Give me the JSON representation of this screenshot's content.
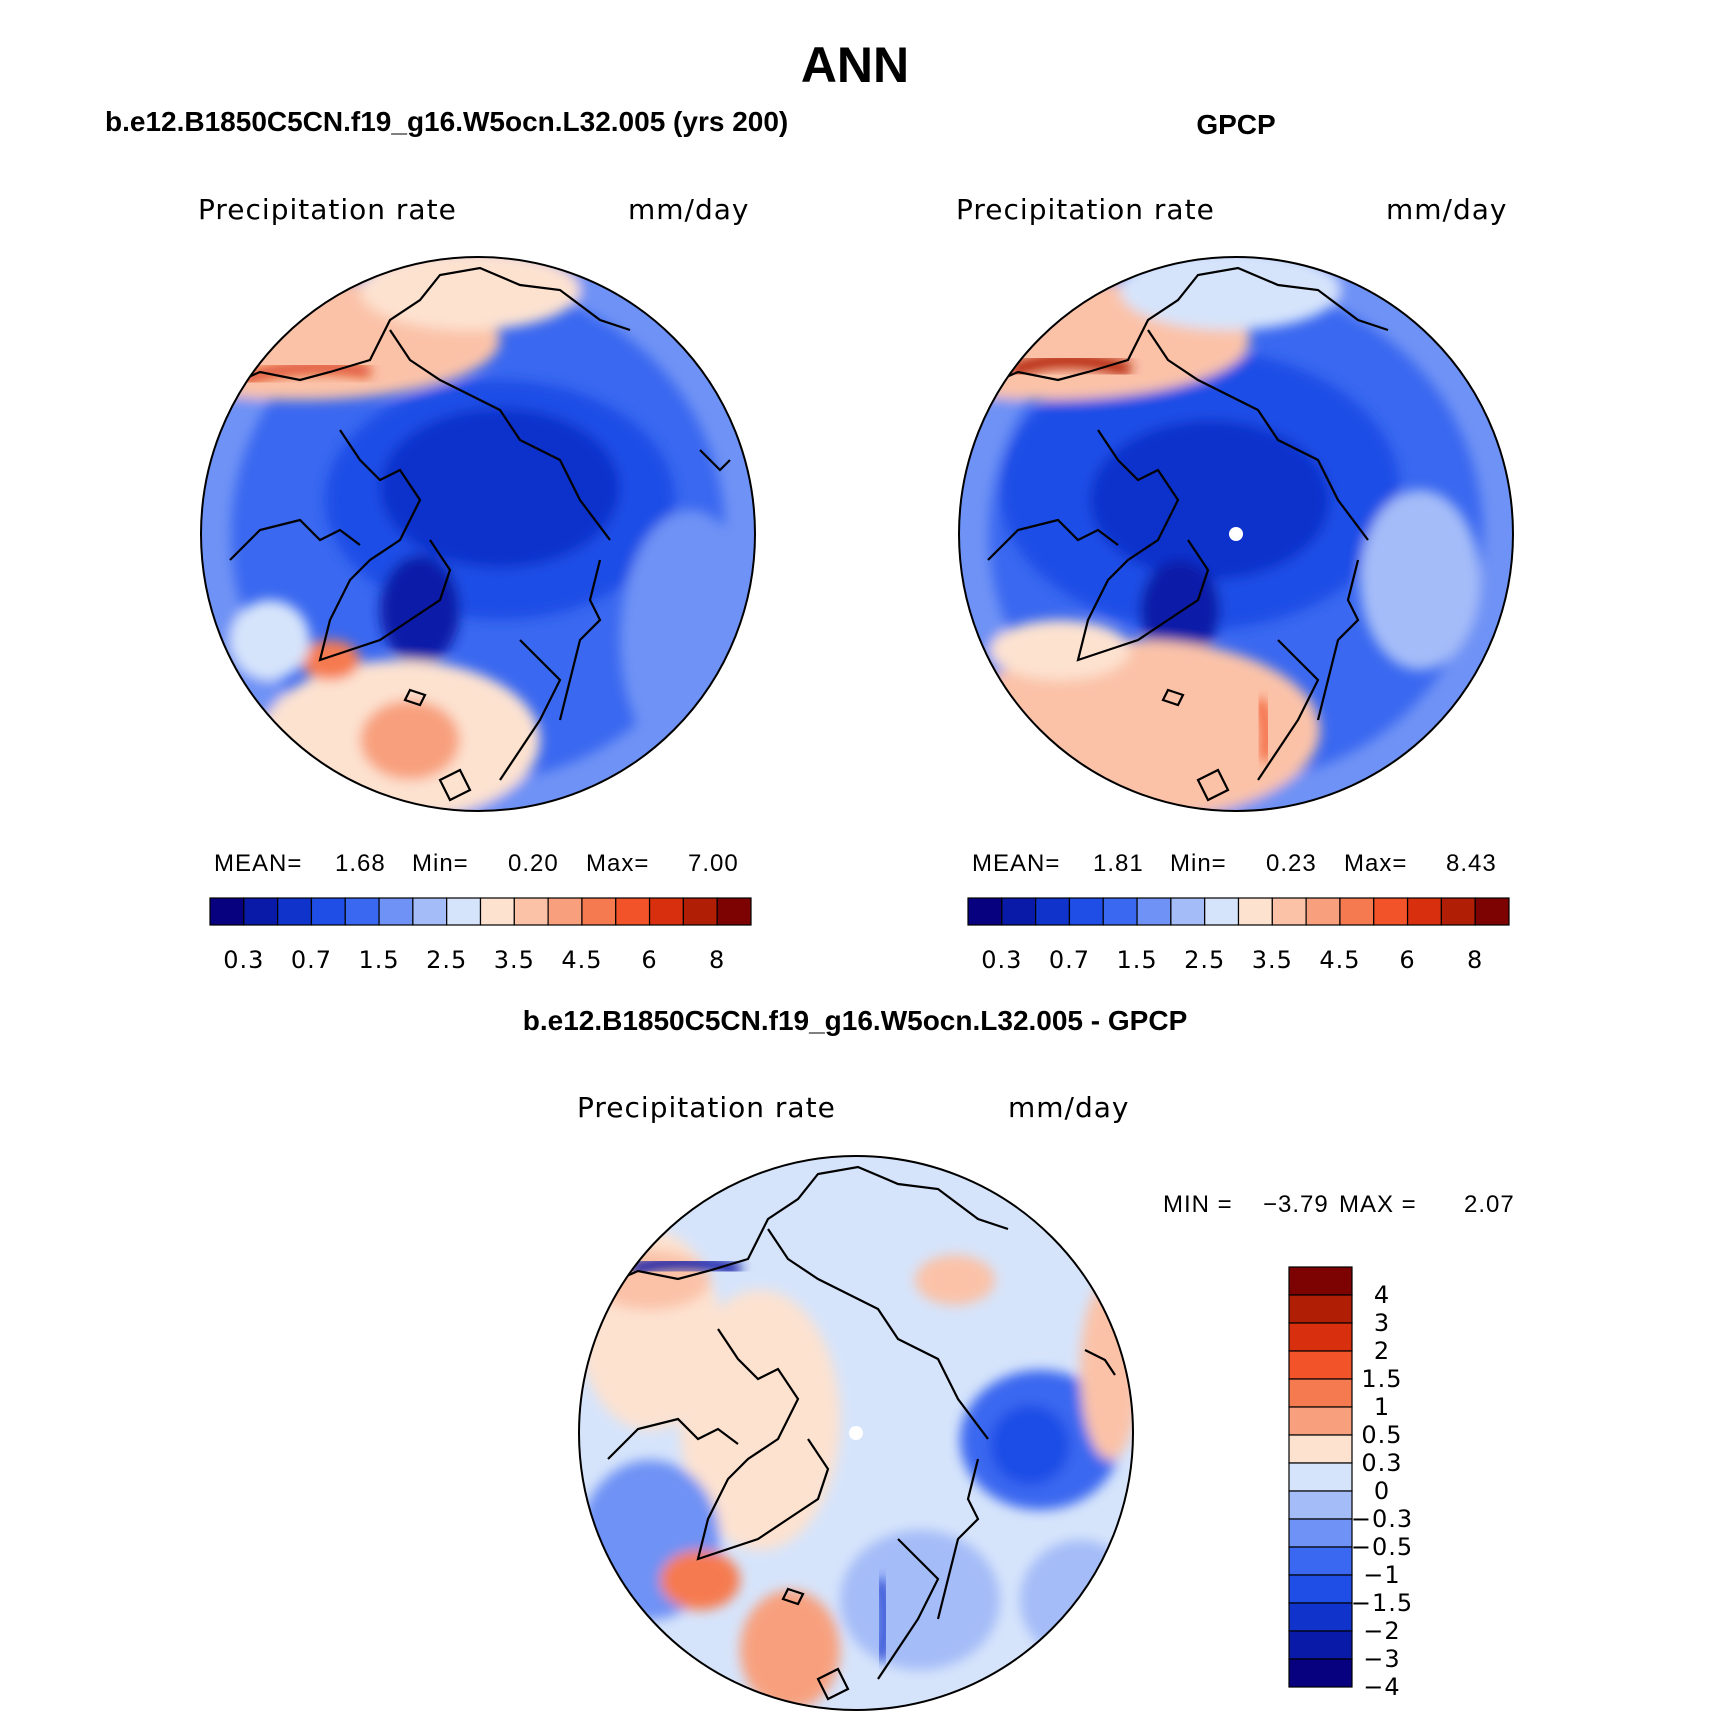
{
  "page": {
    "title": "ANN"
  },
  "panels": [
    {
      "id": "model",
      "title": "b.e12.B1850C5CN.f19_g16.W5ocn.L32.005 (yrs 200)",
      "field_label": "Precipitation  rate",
      "units": "mm/day",
      "stats": {
        "mean_label": "MEAN=",
        "mean": "1.68",
        "min_label": "Min=",
        "min": "0.20",
        "max_label": "Max=",
        "max": "7.00"
      }
    },
    {
      "id": "obs",
      "title": "GPCP",
      "field_label": "Precipitation  rate",
      "units": "mm/day",
      "stats": {
        "mean_label": "MEAN=",
        "mean": "1.81",
        "min_label": "Min=",
        "min": "0.23",
        "max_label": "Max=",
        "max": "8.43"
      }
    },
    {
      "id": "diff",
      "title": "b.e12.B1850C5CN.f19_g16.W5ocn.L32.005 - GPCP",
      "field_label": "Precipitation  rate",
      "units": "mm/day",
      "stats": {
        "min_label": "MIN =",
        "min": "−3.79",
        "max_label": "MAX =",
        "max": "2.07"
      }
    }
  ],
  "colorbars": {
    "abs": {
      "colors": [
        "#07007f",
        "#0a1aa8",
        "#1033cc",
        "#1f4ee6",
        "#3a68f0",
        "#6e92f5",
        "#a4bcf8",
        "#d6e4fb",
        "#fde2d0",
        "#fbc2a8",
        "#f8a07e",
        "#f67a50",
        "#f25328",
        "#d8300f",
        "#b01e05",
        "#7d0303"
      ],
      "labels": [
        "0.3",
        "0.7",
        "1.5",
        "2.5",
        "3.5",
        "4.5",
        "6",
        "8"
      ]
    },
    "diff": {
      "colors": [
        "#7d0303",
        "#b01e05",
        "#d8300f",
        "#f25328",
        "#f67a50",
        "#f8a07e",
        "#fde2d0",
        "#d6e4fb",
        "#a4bcf8",
        "#6e92f5",
        "#3a68f0",
        "#1f4ee6",
        "#1033cc",
        "#0a1aa8",
        "#07007f"
      ],
      "labels": [
        "4",
        "3",
        "2",
        "1.5",
        "1",
        "0.5",
        "0.3",
        "0",
        "−0.3",
        "−0.5",
        "−1",
        "−1.5",
        "−2",
        "−3",
        "−4"
      ]
    }
  }
}
